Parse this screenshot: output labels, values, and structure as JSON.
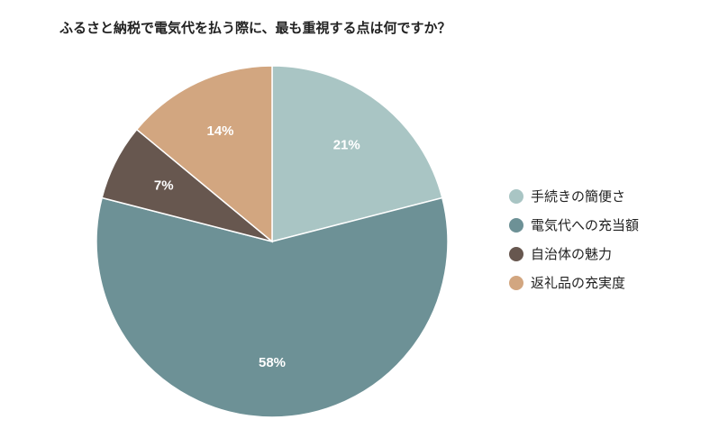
{
  "chart_data": {
    "type": "pie",
    "title": "ふるさと納税で電気代を払う際に、最も重視する点は何ですか？",
    "categories": [
      "手続きの簡便さ",
      "電気代への充当額",
      "自治体の魅力",
      "返礼品の充実度"
    ],
    "values": [
      21,
      58,
      7,
      14
    ],
    "data_labels": [
      "21%",
      "58%",
      "7%",
      "14%"
    ],
    "colors": [
      "#a9c5c4",
      "#6d9196",
      "#67574f",
      "#d2a680"
    ],
    "legend_placement": "right"
  }
}
